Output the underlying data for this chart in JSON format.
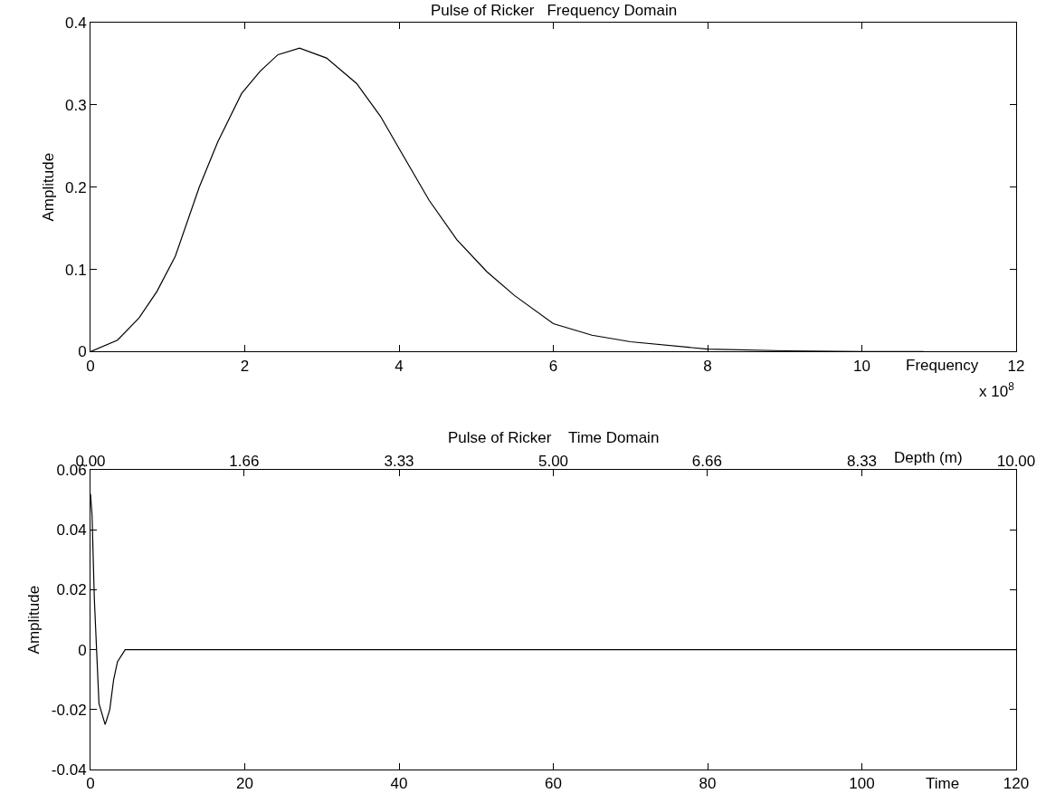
{
  "chart_data": [
    {
      "type": "line",
      "title": "Pulse of Ricker   Frequency Domain",
      "xlabel": "Frequency",
      "ylabel": "Amplitude",
      "x": [
        0,
        0.35,
        0.63,
        0.86,
        1.1,
        1.41,
        1.65,
        1.96,
        2.2,
        2.43,
        2.71,
        3.06,
        3.45,
        3.76,
        4.0,
        4.39,
        4.75,
        5.14,
        5.5,
        6.0,
        6.5,
        7.0,
        8.0,
        9.0,
        10.0,
        10.8
      ],
      "series": [
        {
          "color": "#000000",
          "values": [
            0,
            0.014,
            0.041,
            0.073,
            0.116,
            0.2,
            0.255,
            0.314,
            0.341,
            0.361,
            0.369,
            0.357,
            0.326,
            0.286,
            0.247,
            0.184,
            0.136,
            0.097,
            0.068,
            0.034,
            0.02,
            0.012,
            0.003,
            0.001,
            0,
            0
          ]
        }
      ],
      "xlim": [
        0,
        12
      ],
      "xticks": [
        0,
        2,
        4,
        6,
        8,
        10,
        12
      ],
      "ylim": [
        0,
        0.4
      ],
      "yticks": [
        0,
        0.1,
        0.2,
        0.3,
        0.4
      ],
      "annotations": [
        "x 10$^{8}$"
      ]
    },
    {
      "type": "line",
      "title": "Pulse of Ricker    Time Domain",
      "xlabel": "Time",
      "ylabel": "Amplitude",
      "x2label": "Depth (m)",
      "x": [
        0,
        0.2,
        0.5,
        1.1,
        1.9,
        2.5,
        3.0,
        3.5,
        4.5,
        120
      ],
      "series": [
        {
          "color": "#000000",
          "values": [
            0.052,
            0.045,
            0.017,
            -0.018,
            -0.025,
            -0.02,
            -0.01,
            -0.004,
            0,
            0
          ]
        }
      ],
      "xlim": [
        0,
        120
      ],
      "xticks": [
        0,
        20,
        40,
        60,
        80,
        100,
        120
      ],
      "ylim": [
        -0.04,
        0.06
      ],
      "yticks": [
        {
          "value": -0.04,
          "label": "-0.04"
        },
        {
          "value": -0.02,
          "label": "-0.02"
        },
        0,
        {
          "value": 0.02,
          "label": "0.02"
        },
        {
          "value": 0.04,
          "label": "0.04"
        },
        {
          "value": 0.06,
          "label": "0.06"
        }
      ],
      "x2lim": [
        0,
        10
      ],
      "x2ticks": [
        {
          "value": 0,
          "label": "0.00"
        },
        1.66,
        {
          "value": 3.3333,
          "label": "3.33"
        },
        {
          "value": 5,
          "label": "5.00"
        },
        6.66,
        {
          "value": 8.3333,
          "label": "8.33"
        },
        {
          "value": 10,
          "label": "10.00"
        }
      ]
    }
  ]
}
